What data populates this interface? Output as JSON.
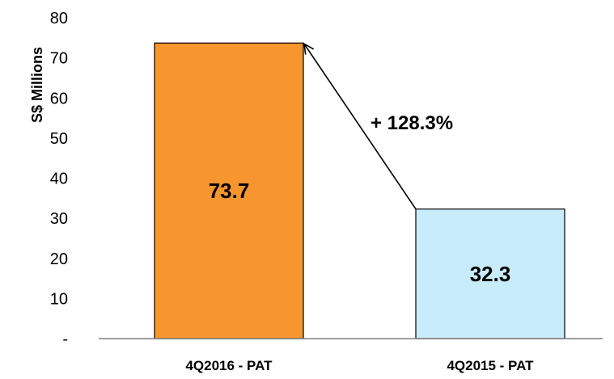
{
  "chart_data": {
    "type": "bar",
    "categories": [
      "4Q2016 - PAT",
      "4Q2015 - PAT"
    ],
    "values": [
      73.7,
      32.3
    ],
    "value_labels": [
      "73.7",
      "32.3"
    ],
    "ylabel": "S$ Millions",
    "ylim": [
      0,
      80
    ],
    "yticks": [
      0,
      10,
      20,
      30,
      40,
      50,
      60,
      70,
      80
    ],
    "ytick_labels": [
      "-",
      "10",
      "20",
      "30",
      "40",
      "50",
      "60",
      "70",
      "80"
    ],
    "bar_colors": [
      "#f7952f",
      "#c8ecfb"
    ],
    "grid": false,
    "legend": "none",
    "annotation": "+ 128.3%"
  }
}
